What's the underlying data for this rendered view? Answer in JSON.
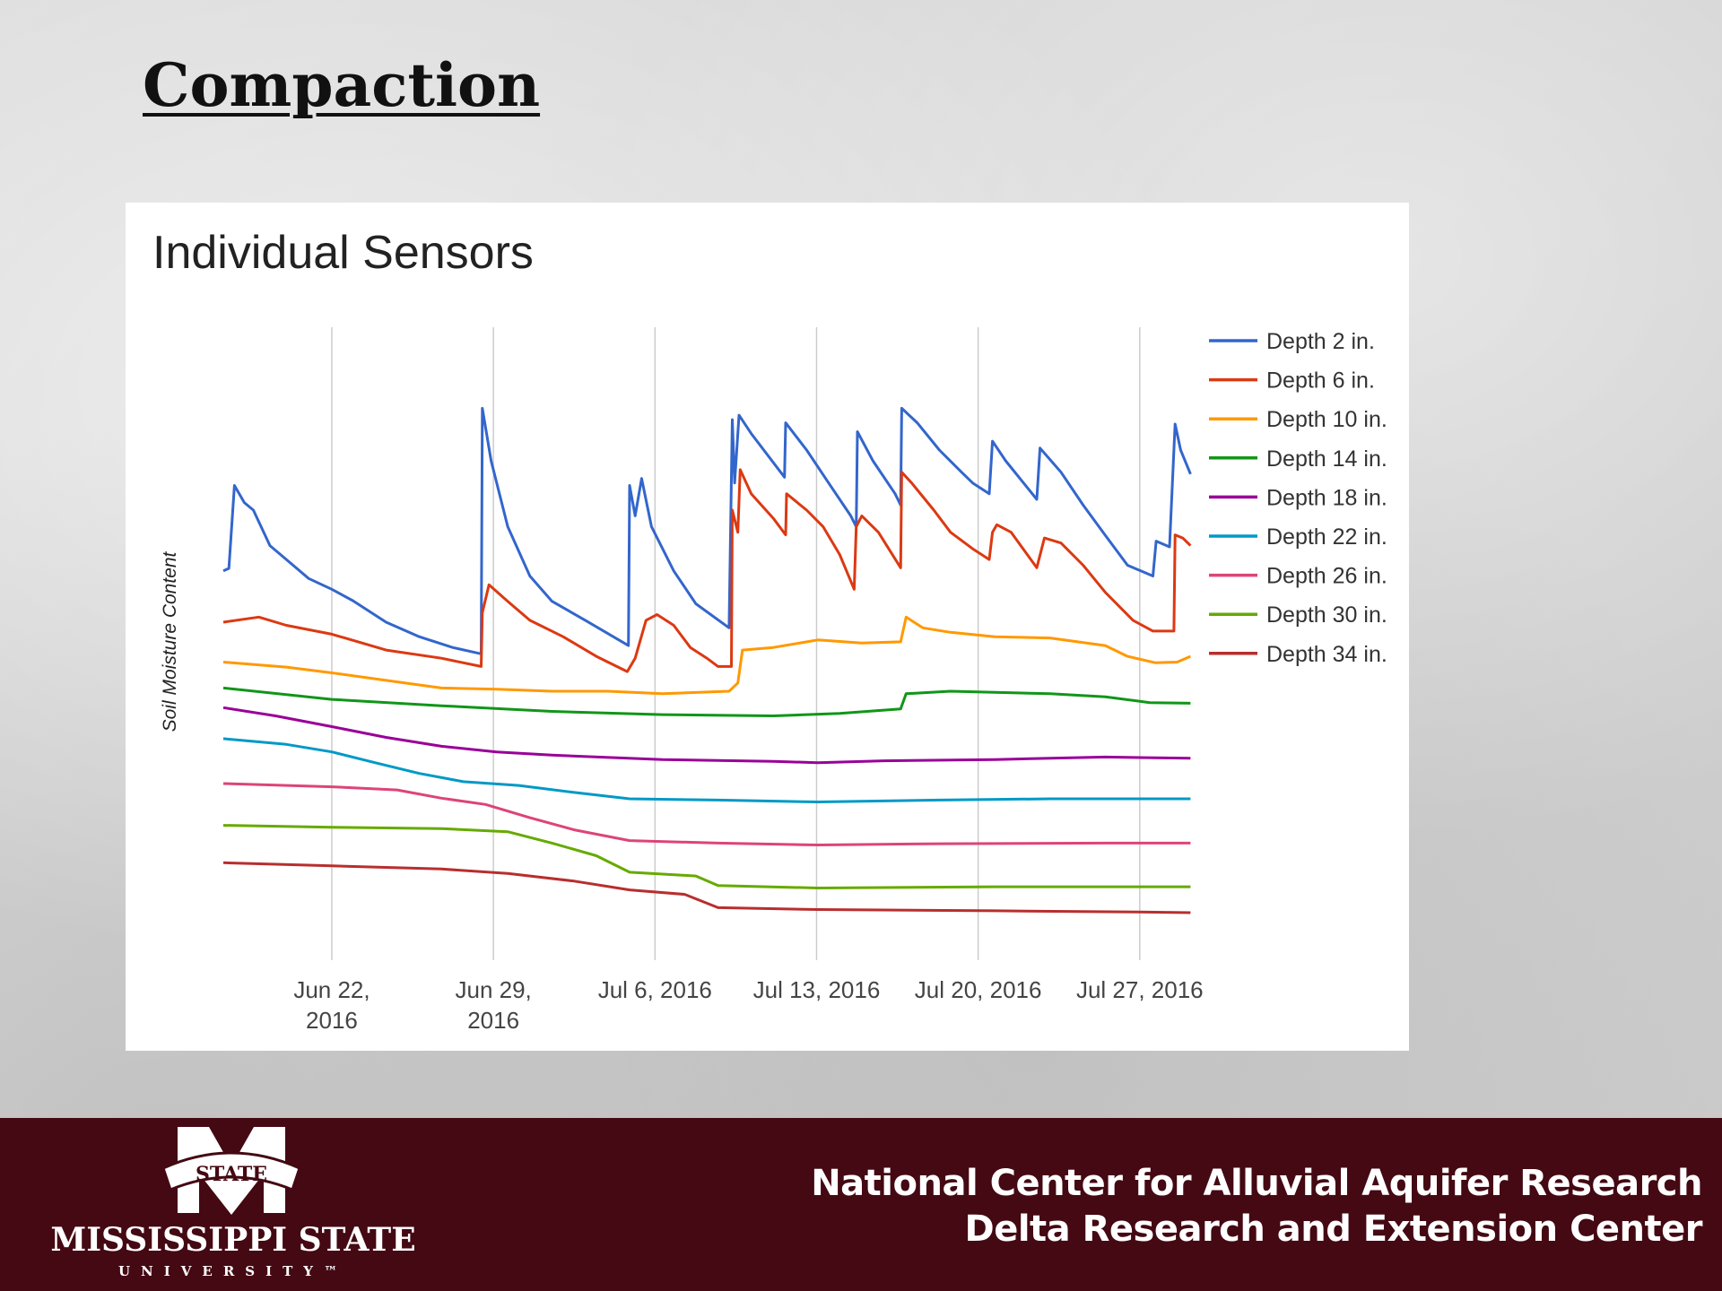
{
  "slide": {
    "title": "Compaction"
  },
  "footer": {
    "line1": "National Center for Alluvial Aquifer Research",
    "line2": "Delta Research and Extension Center",
    "logo": {
      "banner": "STATE",
      "name": "MISSISSIPPI STATE",
      "sub": "UNIVERSITY™"
    },
    "background": "#440913"
  },
  "chart_data": {
    "type": "line",
    "title": "Individual Sensors",
    "xlabel": "",
    "ylabel": "Soil Moisture Content",
    "x_unit": "days since Jun 22, 2016",
    "xlim": [
      -4.7,
      37.3
    ],
    "ylim": [
      0,
      100
    ],
    "grid": "vertical",
    "legend": "right",
    "x_ticks": [
      {
        "x": 0,
        "label": [
          "Jun 22,",
          "2016"
        ]
      },
      {
        "x": 7,
        "label": [
          "Jun 29,",
          "2016"
        ]
      },
      {
        "x": 14,
        "label": [
          "Jul 6, 2016"
        ]
      },
      {
        "x": 21,
        "label": [
          "Jul 13, 2016"
        ]
      },
      {
        "x": 28,
        "label": [
          "Jul 20, 2016"
        ]
      },
      {
        "x": 35,
        "label": [
          "Jul 27, 2016"
        ]
      }
    ],
    "series": [
      {
        "name": "Depth 2 in.",
        "color": "#3366cc",
        "x": [
          -4.7,
          -4.46,
          -4.22,
          -3.79,
          -3.4,
          -2.68,
          -1.97,
          -1.0,
          0,
          0.91,
          2.35,
          3.79,
          5.23,
          6.47,
          6.52,
          6.9,
          7.62,
          8.58,
          9.54,
          10.98,
          12.85,
          12.9,
          13.14,
          13.42,
          13.85,
          14.81,
          15.77,
          17.21,
          17.35,
          17.45,
          17.64,
          18.17,
          19.61,
          19.66,
          20.57,
          21.52,
          22.48,
          22.72,
          22.77,
          23.44,
          24.4,
          24.64,
          24.69,
          25.36,
          26.32,
          27.28,
          27.76,
          28.48,
          28.62,
          29.19,
          30.54,
          30.68,
          31.59,
          32.55,
          33.51,
          34.47,
          35.57,
          35.71,
          36.29,
          36.53,
          36.77,
          37.2
        ],
        "y": [
          61.5,
          61.9,
          75.0,
          72.3,
          71.1,
          65.5,
          63.3,
          60.3,
          58.6,
          56.8,
          53.4,
          51.1,
          49.4,
          48.4,
          87.2,
          78.9,
          68.5,
          60.7,
          56.7,
          53.7,
          49.7,
          75.0,
          70.2,
          76.1,
          68.5,
          61.5,
          56.3,
          52.5,
          85.4,
          75.4,
          86.1,
          83.2,
          76.3,
          84.9,
          80.6,
          75.4,
          70.2,
          68.5,
          83.5,
          78.9,
          73.7,
          71.9,
          87.2,
          84.9,
          80.6,
          77.1,
          75.4,
          73.7,
          82.0,
          78.9,
          72.8,
          80.9,
          77.1,
          71.9,
          67.1,
          62.4,
          60.7,
          66.2,
          65.3,
          84.7,
          80.6,
          76.8
        ]
      },
      {
        "name": "Depth 6 in.",
        "color": "#dc3912",
        "x": [
          -4.7,
          -3.16,
          -1.97,
          0,
          2.35,
          4.75,
          6.47,
          6.52,
          6.81,
          7.62,
          8.58,
          10.02,
          11.46,
          12.8,
          13.14,
          13.61,
          14.09,
          14.81,
          15.53,
          16.25,
          16.73,
          17.31,
          17.35,
          17.59,
          17.69,
          18.17,
          19.13,
          19.66,
          19.7,
          20.57,
          21.28,
          22.0,
          22.63,
          22.72,
          22.96,
          23.68,
          24.64,
          24.69,
          25.12,
          26.08,
          26.8,
          27.76,
          28.48,
          28.62,
          28.81,
          29.43,
          30.54,
          30.87,
          31.59,
          32.55,
          33.51,
          34.71,
          35.57,
          36.48,
          36.53,
          36.86,
          37.2
        ],
        "y": [
          53.4,
          54.2,
          52.9,
          51.5,
          49.0,
          47.7,
          46.4,
          54.9,
          59.3,
          56.7,
          53.7,
          51.1,
          48.0,
          45.6,
          47.7,
          53.7,
          54.6,
          52.9,
          49.4,
          47.7,
          46.4,
          46.4,
          71.1,
          67.6,
          77.5,
          73.7,
          69.8,
          67.2,
          73.7,
          71.1,
          68.5,
          64.1,
          58.6,
          68.5,
          70.2,
          67.6,
          62.0,
          77.1,
          75.4,
          71.1,
          67.6,
          65.0,
          63.3,
          67.6,
          68.8,
          67.6,
          62.0,
          66.7,
          65.9,
          62.4,
          58.1,
          53.7,
          52.0,
          52.0,
          67.2,
          66.7,
          65.5
        ]
      },
      {
        "name": "Depth 10 in.",
        "color": "#ff9900",
        "x": [
          -4.7,
          -1.97,
          0,
          2.35,
          4.75,
          7.14,
          9.54,
          11.94,
          14.33,
          17.21,
          17.59,
          17.79,
          19.13,
          21.05,
          22.96,
          24.64,
          24.88,
          25.6,
          26.8,
          28.72,
          31.11,
          33.51,
          34.47,
          35.67,
          36.62,
          37.2
        ],
        "y": [
          47.1,
          46.3,
          45.4,
          44.2,
          43.0,
          42.8,
          42.5,
          42.5,
          42.1,
          42.5,
          43.8,
          49.0,
          49.4,
          50.6,
          50.1,
          50.3,
          54.2,
          52.5,
          51.8,
          51.1,
          50.9,
          49.7,
          48.0,
          47.0,
          47.1,
          48.0
        ]
      },
      {
        "name": "Depth 14 in.",
        "color": "#109618",
        "x": [
          -4.7,
          0,
          4.75,
          9.54,
          14.33,
          19.13,
          22.0,
          24.64,
          24.88,
          26.8,
          31.11,
          33.51,
          35.43,
          37.2
        ],
        "y": [
          43.0,
          41.2,
          40.2,
          39.3,
          38.8,
          38.6,
          39.0,
          39.7,
          42.1,
          42.5,
          42.1,
          41.6,
          40.7,
          40.6
        ]
      },
      {
        "name": "Depth 18 in.",
        "color": "#990099",
        "x": [
          -4.7,
          -2.44,
          0,
          2.35,
          4.75,
          7.14,
          9.54,
          14.33,
          19.13,
          21.05,
          23.92,
          28.72,
          33.51,
          37.2
        ],
        "y": [
          39.9,
          38.6,
          36.9,
          35.2,
          33.8,
          32.9,
          32.4,
          31.7,
          31.4,
          31.2,
          31.5,
          31.7,
          32.1,
          31.9
        ]
      },
      {
        "name": "Depth 22 in.",
        "color": "#0099c6",
        "x": [
          -4.7,
          -1.97,
          0,
          1.87,
          3.79,
          5.7,
          8.1,
          10.5,
          12.9,
          16.73,
          21.05,
          26.32,
          31.11,
          37.2
        ],
        "y": [
          35.0,
          34.1,
          32.9,
          31.2,
          29.5,
          28.2,
          27.6,
          26.5,
          25.5,
          25.3,
          25.0,
          25.3,
          25.5,
          25.5
        ]
      },
      {
        "name": "Depth 26 in.",
        "color": "#dd4477",
        "x": [
          -4.7,
          0,
          2.83,
          4.75,
          6.66,
          8.58,
          10.5,
          12.9,
          16.73,
          21.05,
          26.32,
          33.51,
          37.2
        ],
        "y": [
          27.9,
          27.4,
          26.9,
          25.6,
          24.6,
          22.5,
          20.6,
          18.9,
          18.5,
          18.2,
          18.4,
          18.5,
          18.5
        ]
      },
      {
        "name": "Depth 30 in.",
        "color": "#66aa00",
        "x": [
          -4.7,
          0,
          4.75,
          7.62,
          9.54,
          11.46,
          12.9,
          15.77,
          16.73,
          21.05,
          28.72,
          37.2
        ],
        "y": [
          21.3,
          21.0,
          20.8,
          20.3,
          18.5,
          16.5,
          13.9,
          13.3,
          11.8,
          11.4,
          11.6,
          11.6
        ]
      },
      {
        "name": "Depth 34 in.",
        "color": "#b82e2e",
        "x": [
          -4.7,
          0,
          4.75,
          7.62,
          10.5,
          12.9,
          15.29,
          16.73,
          21.05,
          28.72,
          34.95,
          37.2
        ],
        "y": [
          15.4,
          14.9,
          14.4,
          13.7,
          12.5,
          11.1,
          10.4,
          8.3,
          8.0,
          7.8,
          7.6,
          7.5
        ]
      }
    ]
  }
}
